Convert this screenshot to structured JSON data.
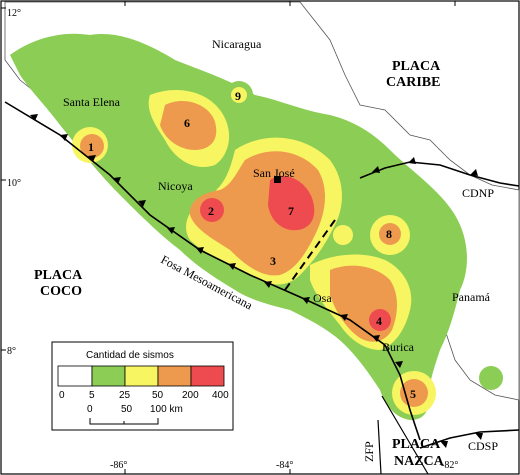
{
  "map": {
    "countries": {
      "nicaragua": "Nicaragua",
      "panama": "Panamá"
    },
    "plates": {
      "caribe": [
        "PLACA",
        "CARIBE"
      ],
      "coco": [
        "PLACA",
        "COCO"
      ],
      "nazca": [
        "PLACA",
        "NAZCA"
      ]
    },
    "places": {
      "santa_elena": "Santa Elena",
      "nicoya": "Nicoya",
      "san_jose": "San José",
      "osa": "Osa",
      "burica": "Burica"
    },
    "features": {
      "fosa": "Fosa Mesoamericana",
      "cdnp": "CDNP",
      "cdsp": "CDSP",
      "zfp": "ZFP"
    },
    "zones": [
      "1",
      "2",
      "3",
      "4",
      "5",
      "6",
      "7",
      "8",
      "9"
    ],
    "latitude_ticks": [
      "12°",
      "10°",
      "8°"
    ],
    "longitude_ticks": [
      "-86°",
      "-84°",
      "-82°"
    ]
  },
  "legend": {
    "title": "Cantidad de sismos",
    "bins": [
      "0",
      "5",
      "25",
      "50",
      "200",
      "400"
    ],
    "colors": [
      "#ffffff",
      "#8cce55",
      "#f8f562",
      "#ee9a4e",
      "#ee4b50"
    ],
    "scale_ticks": [
      "0",
      "50",
      "100 km"
    ]
  },
  "colors": {
    "water": "#ffffff",
    "land": "#ffffff",
    "density_low": "#8cce55",
    "density_mid": "#f8f562",
    "density_high": "#ee9a4e",
    "density_max": "#ee4b50"
  }
}
